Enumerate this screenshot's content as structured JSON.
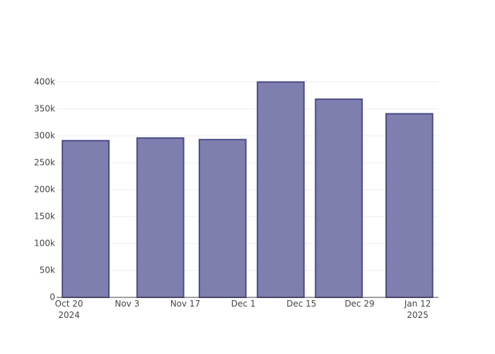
{
  "chart_data": {
    "type": "bar",
    "x": [
      "2024-10-24",
      "2024-11-11",
      "2024-11-26",
      "2024-12-10",
      "2024-12-24",
      "2025-01-10"
    ],
    "values": [
      291000,
      296000,
      293000,
      400000,
      368000,
      341000
    ],
    "color": "#7f7faf",
    "line_color": "#4b4b8a",
    "xlim": [
      "2024-10-17",
      "2025-01-17"
    ],
    "xticks": [
      {
        "value": "2024-10-20",
        "label": "Oct 20\n2024"
      },
      {
        "value": "2024-11-03",
        "label": "Nov 3"
      },
      {
        "value": "2024-11-17",
        "label": "Nov 17"
      },
      {
        "value": "2024-12-01",
        "label": "Dec 1"
      },
      {
        "value": "2024-12-15",
        "label": "Dec 15"
      },
      {
        "value": "2024-12-29",
        "label": "Dec 29"
      },
      {
        "value": "2025-01-12",
        "label": "Jan 12\n2025"
      }
    ],
    "ylim": [
      0,
      420000
    ],
    "yticks": [
      0,
      {
        "value": 50000,
        "label": "50k"
      },
      {
        "value": 100000,
        "label": "100k"
      },
      {
        "value": 150000,
        "label": "150k"
      },
      {
        "value": 200000,
        "label": "200k"
      },
      {
        "value": 250000,
        "label": "250k"
      },
      {
        "value": 300000,
        "label": "300k"
      },
      {
        "value": 350000,
        "label": "350k"
      },
      {
        "value": 400000,
        "label": "400k"
      }
    ],
    "grid": true
  }
}
